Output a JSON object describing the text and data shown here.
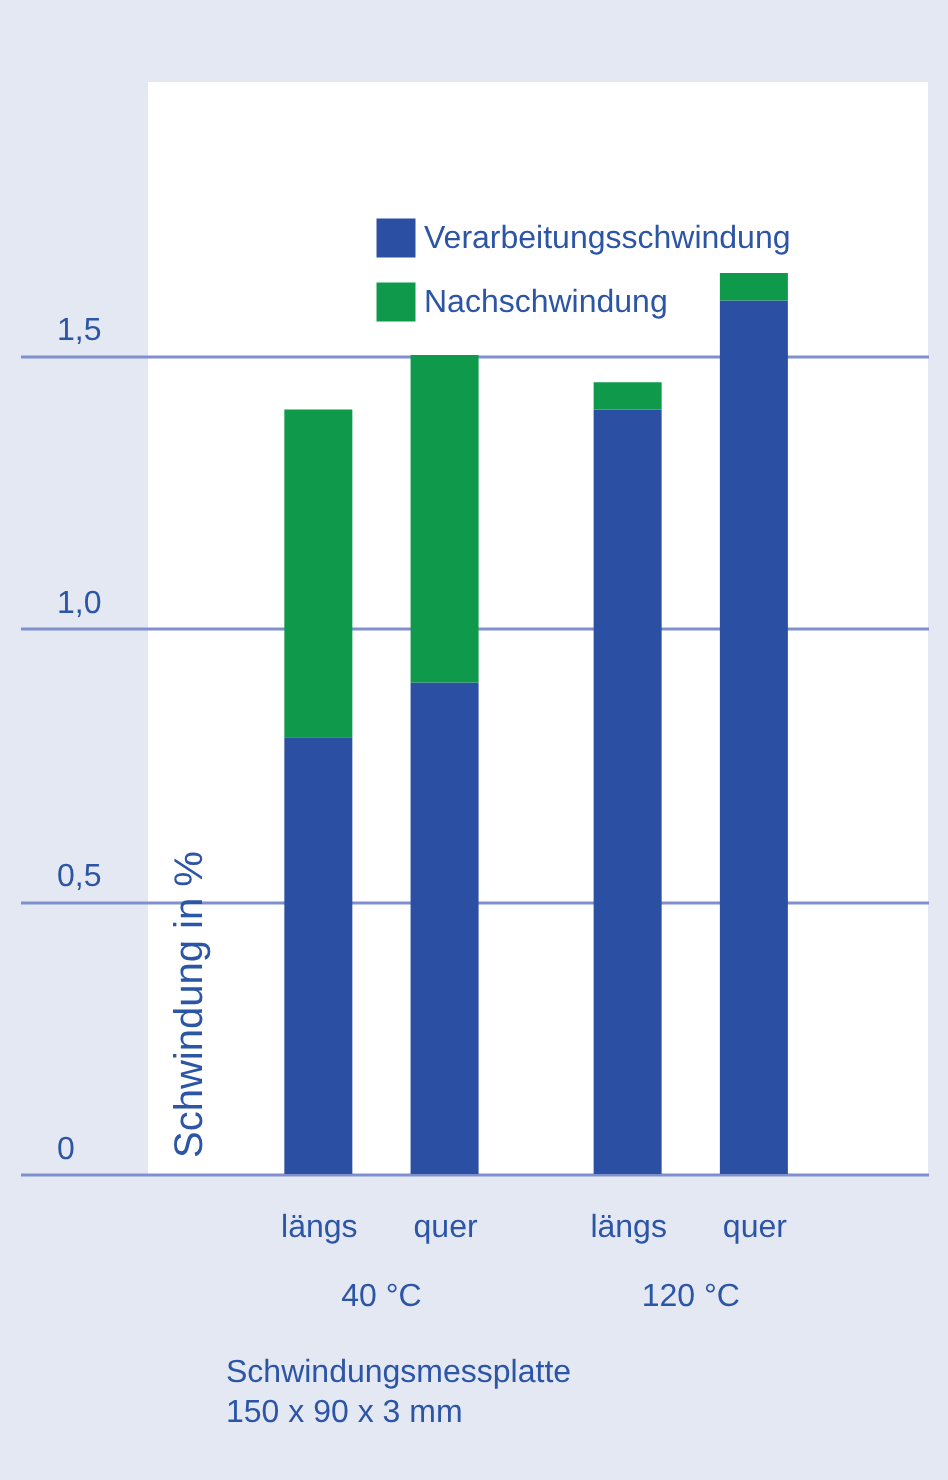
{
  "chart_data": {
    "type": "bar",
    "stacked": true,
    "ylabel": "Schwindung in %",
    "categories": [
      "längs",
      "quer",
      "längs",
      "quer"
    ],
    "series": [
      {
        "name": "Verarbeitungsschwindung",
        "color": "#2a4fa3",
        "values": [
          0.8,
          0.9,
          1.4,
          1.6
        ]
      },
      {
        "name": "Nachschwindung",
        "color": "#0e9a4a",
        "values": [
          0.6,
          0.6,
          0.05,
          0.05
        ]
      }
    ],
    "ylim": [
      0,
      2.0
    ],
    "yticks": [
      0,
      {
        "value": 0.5,
        "label": "0,5"
      },
      {
        "value": 1.0,
        "label": "1,0"
      },
      {
        "value": 1.5,
        "label": "1,5"
      }
    ],
    "grid": "y",
    "legend": "top right",
    "annotations": [
      "40 °C",
      "120 °C",
      "Schwindungsmessplatte",
      "150 x 90 x 3 mm"
    ]
  }
}
